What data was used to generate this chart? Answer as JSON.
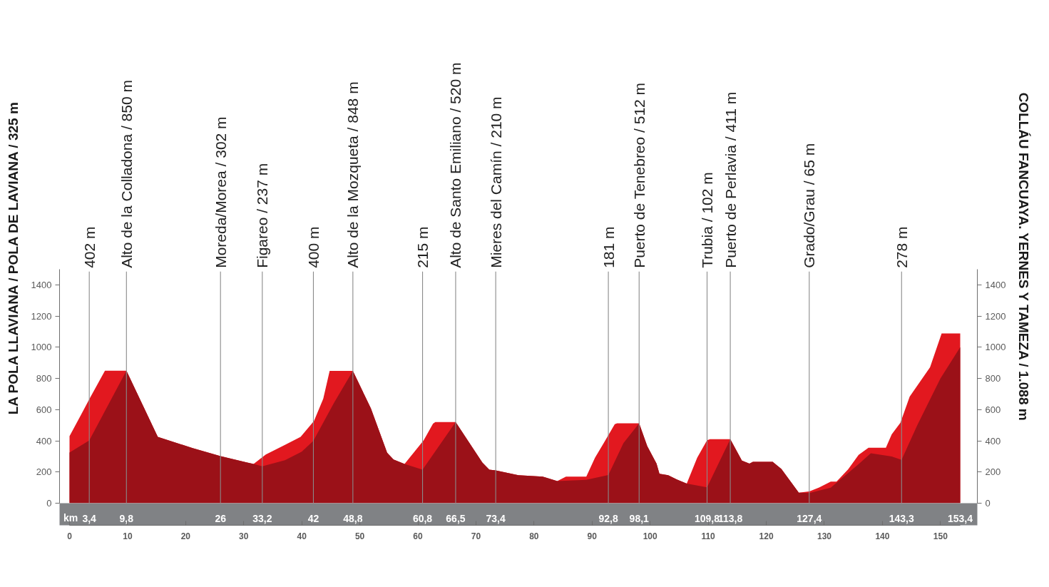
{
  "chart_data": {
    "type": "area",
    "ylabel": "LA POLA LLAVIANA / POLA DE LAVIANA / 325 m",
    "y2label": "COLLÁU FANCUAYA. YERNES Y TAMEZA / 1.088 m",
    "xlim": [
      0,
      153.4
    ],
    "xticks": [
      0,
      10,
      20,
      30,
      40,
      50,
      60,
      70,
      80,
      90,
      100,
      110,
      120,
      130,
      140,
      150
    ],
    "x2lim": [
      0,
      153.4
    ],
    "x2label": "km",
    "x2ticks": [
      {
        "value": 3.4,
        "label": "3,4"
      },
      {
        "value": 9.8,
        "label": "9,8"
      },
      26,
      {
        "value": 33.2,
        "label": "33,2"
      },
      42,
      {
        "value": 48.8,
        "label": "48,8"
      },
      {
        "value": 60.8,
        "label": "60,8"
      },
      {
        "value": 66.5,
        "label": "66,5"
      },
      {
        "value": 73.4,
        "label": "73,4"
      },
      {
        "value": 92.8,
        "label": "92,8"
      },
      {
        "value": 98.1,
        "label": "98,1"
      },
      {
        "value": 109.8,
        "label": "109,8"
      },
      {
        "value": 113.8,
        "label": "113,8"
      },
      {
        "value": 127.4,
        "label": "127,4"
      },
      {
        "value": 143.3,
        "label": "143,3"
      },
      {
        "value": 153.4,
        "label": "153,4"
      }
    ],
    "ylim": [
      0,
      1500
    ],
    "yticks": [
      0,
      200,
      400,
      600,
      800,
      1000,
      1200,
      1400
    ],
    "y2lim": [
      0,
      1500
    ],
    "y2ticks": [
      0,
      200,
      400,
      600,
      800,
      1000,
      1200,
      1400
    ],
    "series": [
      {
        "color": "#e2181f",
        "x": [
          0,
          2.0,
          3.6,
          6.1,
          9.8,
          15.2,
          21.2,
          26,
          30.6,
          31.7,
          33.8,
          37.1,
          39.8,
          42.1,
          43.7,
          44.8,
          48.8,
          51.9,
          54.7,
          55.8,
          57.7,
          61.0,
          62.6,
          63.0,
          66.5,
          71.1,
          72.3,
          73.4,
          77.3,
          81.5,
          84.0,
          85.5,
          89.0,
          90.5,
          92.0,
          93.9,
          94.3,
          98.1,
          99.5,
          101.1,
          101.6,
          103.1,
          104.6,
          106.3,
          108.1,
          109.8,
          110.3,
          113.8,
          115.8,
          117.1,
          117.7,
          121.1,
          122.6,
          125.6,
          127.4,
          129.1,
          131.1,
          132.1,
          134.1,
          135.9,
          137.6,
          140.6,
          141.6,
          143.1,
          144.7,
          148.2,
          150.2,
          153.4
        ],
        "values": [
          430,
          568,
          680,
          850,
          850,
          425,
          353,
          302,
          261,
          252,
          312,
          374,
          425,
          527,
          670,
          848,
          848,
          608,
          323,
          280,
          252,
          404,
          510,
          520,
          520,
          261,
          215,
          210,
          180,
          170,
          142,
          170,
          170,
          292,
          385,
          506,
          512,
          512,
          366,
          254,
          189,
          180,
          152,
          126,
          292,
          404,
          411,
          411,
          273,
          254,
          265,
          265,
          220,
          68,
          75,
          101,
          138,
          138,
          217,
          310,
          356,
          356,
          441,
          516,
          684,
          871,
          1088,
          1088
        ]
      },
      {
        "color": "#9b1118",
        "x": [
          0,
          3.4,
          9.8,
          15.2,
          21.2,
          26,
          30.6,
          31.7,
          33.2,
          37.1,
          40.0,
          42.0,
          45.5,
          48.8,
          51.9,
          54.7,
          55.8,
          57.7,
          60.8,
          66.5,
          71.1,
          72.3,
          73.4,
          77.3,
          81.5,
          84.0,
          89.0,
          92.8,
          95.4,
          98.1,
          99.5,
          101.1,
          101.6,
          103.1,
          104.6,
          106.3,
          109.8,
          113.8,
          115.8,
          117.1,
          117.7,
          121.1,
          122.6,
          125.6,
          127.4,
          131.1,
          135.9,
          138.0,
          141.6,
          143.3,
          146.0,
          150.0,
          153.4
        ],
        "values": [
          325,
          402,
          850,
          425,
          353,
          302,
          261,
          252,
          237,
          275,
          330,
          400,
          640,
          848,
          608,
          323,
          280,
          252,
          215,
          520,
          261,
          215,
          210,
          180,
          170,
          142,
          150,
          181,
          385,
          512,
          366,
          254,
          189,
          180,
          152,
          126,
          102,
          411,
          273,
          254,
          265,
          265,
          220,
          68,
          65,
          100,
          250,
          320,
          300,
          278,
          500,
          800,
          1000
        ]
      }
    ],
    "ref_lines": [
      {
        "axis": "x",
        "value": 3.4,
        "label": "402 m",
        "color": "#8a8a8a"
      },
      {
        "axis": "x",
        "value": 9.8,
        "label": "Alto de la Colladona / 850 m",
        "color": "#8a8a8a"
      },
      {
        "axis": "x",
        "value": 26,
        "label": "Moreda/Morea / 302 m",
        "color": "#8a8a8a"
      },
      {
        "axis": "x",
        "value": 33.2,
        "label": "Figareo / 237 m",
        "color": "#8a8a8a"
      },
      {
        "axis": "x",
        "value": 42,
        "label": "400 m",
        "color": "#8a8a8a"
      },
      {
        "axis": "x",
        "value": 48.8,
        "label": "Alto de la Mozqueta / 848 m",
        "color": "#8a8a8a"
      },
      {
        "axis": "x",
        "value": 60.8,
        "label": "215 m",
        "color": "#8a8a8a"
      },
      {
        "axis": "x",
        "value": 66.5,
        "label": "Alto de Santo Emiliano / 520 m",
        "color": "#8a8a8a"
      },
      {
        "axis": "x",
        "value": 73.4,
        "label": "Mieres del Camín / 210 m",
        "color": "#8a8a8a"
      },
      {
        "axis": "x",
        "value": 92.8,
        "label": "181 m",
        "color": "#8a8a8a"
      },
      {
        "axis": "x",
        "value": 98.1,
        "label": "Puerto de Tenebreo / 512 m",
        "color": "#8a8a8a"
      },
      {
        "axis": "x",
        "value": 109.8,
        "label": "Trubia / 102 m",
        "color": "#8a8a8a"
      },
      {
        "axis": "x",
        "value": 113.8,
        "label": "Puerto de Perlavia / 411 m",
        "color": "#8a8a8a"
      },
      {
        "axis": "x",
        "value": 127.4,
        "label": "Grado/Grau / 65 m",
        "color": "#8a8a8a"
      },
      {
        "axis": "x",
        "value": 143.3,
        "label": "278 m",
        "color": "#8a8a8a"
      }
    ]
  }
}
